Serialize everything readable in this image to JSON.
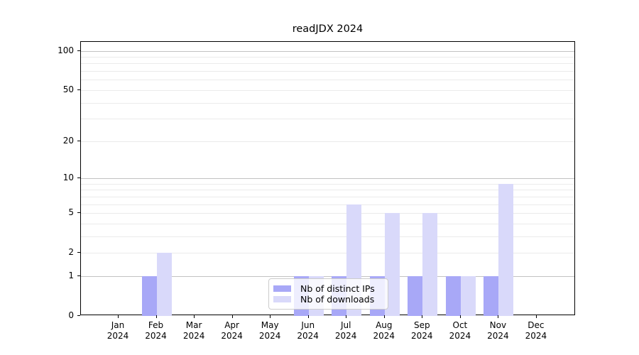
{
  "title": "readJDX 2024",
  "legend": {
    "items": [
      {
        "label": "Nb of distinct IPs",
        "color": "#a8a8f7"
      },
      {
        "label": "Nb of downloads",
        "color": "#d9d9fa"
      }
    ]
  },
  "chart_data": {
    "type": "bar",
    "title": "readJDX 2024",
    "categories": [
      {
        "month": "Jan",
        "year": "2024"
      },
      {
        "month": "Feb",
        "year": "2024"
      },
      {
        "month": "Mar",
        "year": "2024"
      },
      {
        "month": "Apr",
        "year": "2024"
      },
      {
        "month": "May",
        "year": "2024"
      },
      {
        "month": "Jun",
        "year": "2024"
      },
      {
        "month": "Jul",
        "year": "2024"
      },
      {
        "month": "Aug",
        "year": "2024"
      },
      {
        "month": "Sep",
        "year": "2024"
      },
      {
        "month": "Oct",
        "year": "2024"
      },
      {
        "month": "Nov",
        "year": "2024"
      },
      {
        "month": "Dec",
        "year": "2024"
      }
    ],
    "series": [
      {
        "name": "Nb of distinct IPs",
        "color": "#a8a8f7",
        "values": [
          0,
          1,
          0,
          0,
          0,
          1,
          1,
          1,
          1,
          1,
          1,
          0
        ]
      },
      {
        "name": "Nb of downloads",
        "color": "#d9d9fa",
        "values": [
          0,
          2,
          0,
          0,
          0,
          1,
          6,
          5,
          5,
          1,
          9,
          0
        ]
      }
    ],
    "xlabel": "",
    "ylabel": "",
    "yscale": "log1p",
    "ylim": [
      0,
      117
    ],
    "yticks": [
      0,
      1,
      2,
      5,
      10,
      20,
      50,
      100
    ],
    "major_gridlines": [
      1,
      10,
      100
    ],
    "minor_gridlines": [
      2,
      3,
      4,
      5,
      6,
      7,
      8,
      9,
      20,
      30,
      40,
      50,
      60,
      70,
      80,
      90
    ],
    "grid": true,
    "legend_position": "lower center-left inside plot"
  }
}
